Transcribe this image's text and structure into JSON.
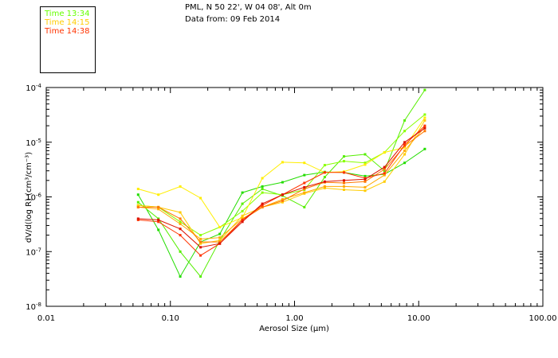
{
  "legend": [
    {
      "label": "Time 13:34",
      "color": "#66ff00"
    },
    {
      "label": "Time 14:15",
      "color": "#ffcc00"
    },
    {
      "label": "Time 14:38",
      "color": "#ff3300"
    }
  ],
  "header": {
    "location": "PML, N 50 22', W 04 08', Alt 0m",
    "date": "Data from: 09 Feb 2014"
  },
  "chart_data": {
    "type": "line",
    "xlabel": "Aerosol Size (µm)",
    "ylabel": "dV/d(log R) (cm³/cm⁻³)",
    "xscale": "log",
    "yscale": "log",
    "xlim": [
      0.01,
      100
    ],
    "ylim": [
      1e-08,
      0.0001
    ],
    "x_ticks": [
      {
        "value": 0.01,
        "label": "0.01"
      },
      {
        "value": 0.1,
        "label": "0.10"
      },
      {
        "value": 1,
        "label": "1.00"
      },
      {
        "value": 10,
        "label": "10.00"
      },
      {
        "value": 100,
        "label": "100.00"
      }
    ],
    "y_ticks": [
      {
        "value": 1e-08,
        "mant": "10",
        "exp": "-8"
      },
      {
        "value": 1e-07,
        "mant": "10",
        "exp": "-7"
      },
      {
        "value": 1e-06,
        "mant": "10",
        "exp": "-6"
      },
      {
        "value": 1e-05,
        "mant": "10",
        "exp": "-5"
      },
      {
        "value": 0.0001,
        "mant": "10",
        "exp": "-4"
      }
    ],
    "x": [
      0.055,
      0.08,
      0.12,
      0.175,
      0.25,
      0.38,
      0.55,
      0.8,
      1.2,
      1.75,
      2.5,
      3.7,
      5.3,
      7.7,
      11.2
    ],
    "series": [
      {
        "color": "#22dd00",
        "values": [
          1.1e-06,
          2.5e-07,
          3.5e-08,
          1.5e-07,
          2.1e-07,
          1.2e-06,
          1.55e-06,
          1.85e-06,
          2.5e-06,
          2.85e-06,
          2.8e-06,
          2.4e-06,
          2.6e-06,
          4.2e-06,
          7.5e-06
        ]
      },
      {
        "color": "#55ee00",
        "values": [
          8e-07,
          4e-07,
          1e-07,
          3.5e-08,
          1.6e-07,
          7.5e-07,
          1.4e-06,
          1.05e-06,
          6.5e-07,
          2.3e-06,
          5.5e-06,
          6e-06,
          3e-06,
          2.5e-05,
          9e-05
        ]
      },
      {
        "color": "#88ff00",
        "values": [
          7e-07,
          6.5e-07,
          3.5e-07,
          2e-07,
          2.8e-07,
          5.5e-07,
          1.2e-06,
          1.1e-06,
          1.35e-06,
          3.8e-06,
          4.5e-06,
          4.2e-06,
          6.5e-06,
          1.6e-05,
          3.2e-05
        ]
      },
      {
        "color": "#ffee00",
        "values": [
          1.4e-06,
          1.1e-06,
          1.55e-06,
          9.5e-07,
          2.8e-07,
          4.2e-07,
          2.2e-06,
          4.3e-06,
          4.2e-06,
          2.8e-06,
          2.9e-06,
          3.9e-06,
          6.5e-06,
          8e-06,
          2.8e-05
        ]
      },
      {
        "color": "#ffcc00",
        "values": [
          7e-07,
          6.5e-07,
          5.2e-07,
          1.4e-07,
          1.6e-07,
          4.5e-07,
          6.5e-07,
          8e-07,
          1.15e-06,
          1.45e-06,
          1.35e-06,
          1.3e-06,
          1.9e-06,
          6e-06,
          2.5e-05
        ]
      },
      {
        "color": "#ffaa00",
        "values": [
          6.5e-07,
          6e-07,
          3.2e-07,
          1.7e-07,
          1.8e-07,
          4e-07,
          6.5e-07,
          9e-07,
          1.2e-06,
          1.55e-06,
          1.55e-06,
          1.5e-06,
          2.5e-06,
          7e-06,
          1.9e-05
        ]
      },
      {
        "color": "#ff7700",
        "values": [
          6.5e-07,
          6.5e-07,
          4e-07,
          1.5e-07,
          1.5e-07,
          3.8e-07,
          6.5e-07,
          8.5e-07,
          1.4e-06,
          1.85e-06,
          1.8e-06,
          1.9e-06,
          3.2e-06,
          8.5e-06,
          1.6e-05
        ]
      },
      {
        "color": "#ff3300",
        "values": [
          3.8e-07,
          3.5e-07,
          2e-07,
          8.5e-08,
          1.4e-07,
          3.8e-07,
          7e-07,
          1.1e-06,
          1.8e-06,
          2.8e-06,
          2.8e-06,
          2.2e-06,
          2.7e-06,
          9e-06,
          2e-05
        ]
      },
      {
        "color": "#dd1100",
        "values": [
          4e-07,
          3.8e-07,
          2.6e-07,
          1.2e-07,
          1.4e-07,
          3.5e-07,
          7.5e-07,
          1.1e-06,
          1.5e-06,
          1.9e-06,
          2e-06,
          2.1e-06,
          3.5e-06,
          1e-05,
          1.8e-05
        ]
      }
    ]
  }
}
